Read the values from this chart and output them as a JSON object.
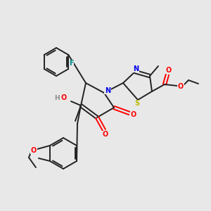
{
  "bg_color": "#e8e8e8",
  "bond_color": "#222222",
  "atom_colors": {
    "N": "#0000ee",
    "O": "#ff0000",
    "S": "#bbbb00",
    "F": "#008888",
    "H": "#888888",
    "C": "#222222"
  },
  "lw": 1.4,
  "fs": 7.0
}
